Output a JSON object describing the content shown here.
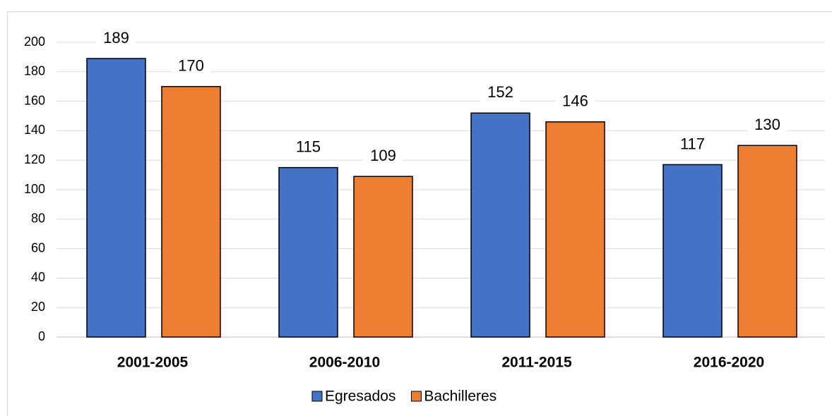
{
  "chart_data": {
    "type": "bar",
    "categories": [
      "2001-2005",
      "2006-2010",
      "2011-2015",
      "2016-2020"
    ],
    "series": [
      {
        "name": "Egresados",
        "color": "#4472c4",
        "values": [
          189,
          115,
          152,
          117
        ]
      },
      {
        "name": "Bachilleres",
        "color": "#ed7d31",
        "values": [
          170,
          109,
          146,
          130
        ]
      }
    ],
    "ylim": [
      0,
      200
    ],
    "yticks": [
      0,
      20,
      40,
      60,
      80,
      100,
      120,
      140,
      160,
      180,
      200
    ],
    "grid": true,
    "legend": "bottom"
  }
}
